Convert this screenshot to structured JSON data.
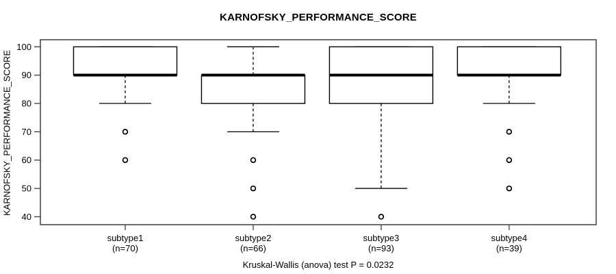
{
  "chart_data": {
    "type": "boxplot",
    "title": "KARNOFSKY_PERFORMANCE_SCORE",
    "ylabel": "KARNOFSKY_PERFORMANCE_SCORE",
    "caption": "Kruskal-Wallis (anova) test P = 0.0232",
    "yticks": [
      40,
      50,
      60,
      70,
      80,
      90,
      100
    ],
    "ylim": [
      37.2,
      102.5
    ],
    "grid": false,
    "legend": "none",
    "groups": [
      {
        "label": "subtype1",
        "n_label": "(n=70)",
        "n": 70,
        "q1": 90,
        "median": 90,
        "q3": 100,
        "whisker_low": 80,
        "whisker_high": 100,
        "outliers": [
          70,
          60
        ]
      },
      {
        "label": "subtype2",
        "n_label": "(n=66)",
        "n": 66,
        "q1": 80,
        "median": 90,
        "q3": 90,
        "whisker_low": 70,
        "whisker_high": 100,
        "outliers": [
          60,
          50,
          40
        ]
      },
      {
        "label": "subtype3",
        "n_label": "(n=93)",
        "n": 93,
        "q1": 80,
        "median": 90,
        "q3": 100,
        "whisker_low": 50,
        "whisker_high": 100,
        "outliers": [
          40
        ]
      },
      {
        "label": "subtype4",
        "n_label": "(n=39)",
        "n": 39,
        "q1": 90,
        "median": 90,
        "q3": 100,
        "whisker_low": 80,
        "whisker_high": 100,
        "outliers": [
          70,
          60,
          50
        ]
      }
    ],
    "colors": {
      "line": "#000000",
      "frame": "#3d3d3d",
      "background": "#ffffff",
      "text": "#000000",
      "box_fill": "#ffffff"
    }
  }
}
